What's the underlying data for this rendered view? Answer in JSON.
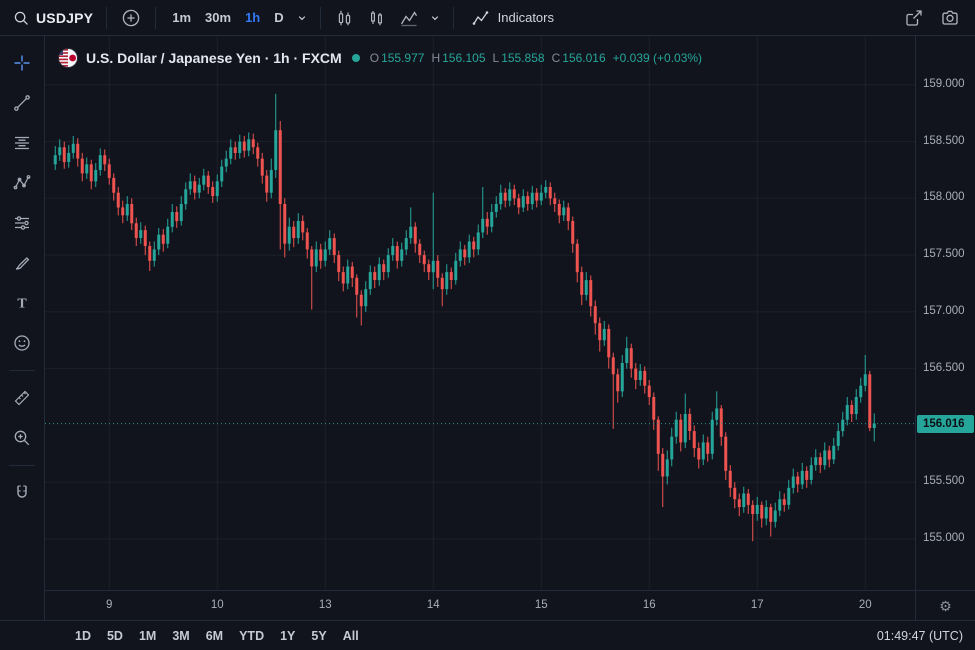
{
  "colors": {
    "up": "#26a69a",
    "down": "#ef5350",
    "accent": "#2962ff",
    "bg": "#11141d",
    "border": "#232a3a",
    "price_label_bg": "#26a69a"
  },
  "top_toolbar": {
    "symbol": "USDJPY",
    "intervals": [
      {
        "label": "1m",
        "active": false
      },
      {
        "label": "30m",
        "active": false
      },
      {
        "label": "1h",
        "active": true
      },
      {
        "label": "D",
        "active": false
      }
    ],
    "indicators_label": "Indicators"
  },
  "left_toolbar": {
    "tools": [
      "crosshair",
      "trend-line",
      "fib-retracement",
      "xabcd-pattern",
      "forecast",
      "brush",
      "text",
      "emoji",
      "ruler",
      "zoom-in",
      "magnet"
    ]
  },
  "chart": {
    "title": "U.S. Dollar / Japanese Yen · 1h · FXCM",
    "ohlc": {
      "o_label": "O",
      "o": "155.977",
      "h_label": "H",
      "h": "156.105",
      "l_label": "L",
      "l": "155.858",
      "c_label": "C",
      "c": "156.016",
      "change": "+0.039 (+0.03%)"
    },
    "price_label": "156.016"
  },
  "chart_data": {
    "type": "candlestick",
    "symbol": "USDJPY",
    "exchange": "FXCM",
    "interval": "1h",
    "last_price": 156.016,
    "current_bar": {
      "open": 155.977,
      "high": 156.105,
      "low": 155.858,
      "close": 156.016,
      "change": "+0.039 (+0.03%)"
    },
    "y_axis": {
      "min": 154.55,
      "max": 159.43,
      "ticks": [
        {
          "label": "159.000",
          "value": 159.0
        },
        {
          "label": "158.500",
          "value": 158.5
        },
        {
          "label": "158.000",
          "value": 158.0
        },
        {
          "label": "157.500",
          "value": 157.5
        },
        {
          "label": "157.000",
          "value": 157.0
        },
        {
          "label": "156.500",
          "value": 156.5
        },
        {
          "label": "155.500",
          "value": 155.5
        },
        {
          "label": "155.000",
          "value": 155.0
        }
      ]
    },
    "x_ticks": [
      {
        "label": "9",
        "i": 12
      },
      {
        "label": "10",
        "i": 36
      },
      {
        "label": "13",
        "i": 60
      },
      {
        "label": "14",
        "i": 84
      },
      {
        "label": "15",
        "i": 108
      },
      {
        "label": "16",
        "i": 132
      },
      {
        "label": "17",
        "i": 156
      },
      {
        "label": "20",
        "i": 180
      }
    ],
    "candles": [
      [
        158.3,
        158.46,
        158.25,
        158.38
      ],
      [
        158.38,
        158.52,
        158.33,
        158.45
      ],
      [
        158.45,
        158.5,
        158.26,
        158.32
      ],
      [
        158.32,
        158.47,
        158.27,
        158.4
      ],
      [
        158.4,
        158.55,
        158.35,
        158.48
      ],
      [
        158.48,
        158.53,
        158.28,
        158.35
      ],
      [
        158.35,
        158.4,
        158.15,
        158.22
      ],
      [
        158.22,
        158.36,
        158.17,
        158.3
      ],
      [
        158.3,
        158.34,
        158.08,
        158.15
      ],
      [
        158.15,
        158.31,
        158.1,
        158.25
      ],
      [
        158.25,
        158.44,
        158.2,
        158.38
      ],
      [
        158.38,
        158.43,
        158.24,
        158.3
      ],
      [
        158.3,
        158.35,
        158.12,
        158.18
      ],
      [
        158.18,
        158.22,
        157.98,
        158.05
      ],
      [
        158.05,
        158.1,
        157.85,
        157.92
      ],
      [
        157.92,
        157.98,
        157.78,
        157.85
      ],
      [
        157.85,
        158.02,
        157.8,
        157.95
      ],
      [
        157.95,
        158.0,
        157.72,
        157.78
      ],
      [
        157.78,
        157.83,
        157.58,
        157.65
      ],
      [
        157.65,
        157.79,
        157.6,
        157.72
      ],
      [
        157.72,
        157.76,
        157.5,
        157.58
      ],
      [
        157.58,
        157.62,
        157.36,
        157.45
      ],
      [
        157.45,
        157.62,
        157.4,
        157.55
      ],
      [
        157.55,
        157.74,
        157.5,
        157.68
      ],
      [
        157.68,
        157.73,
        157.53,
        157.6
      ],
      [
        157.6,
        157.82,
        157.56,
        157.75
      ],
      [
        157.75,
        157.95,
        157.7,
        157.88
      ],
      [
        157.88,
        157.93,
        157.74,
        157.8
      ],
      [
        157.8,
        158.02,
        157.76,
        157.95
      ],
      [
        157.95,
        158.14,
        157.9,
        158.08
      ],
      [
        158.08,
        158.22,
        158.03,
        158.15
      ],
      [
        158.15,
        158.2,
        157.99,
        158.05
      ],
      [
        158.05,
        158.18,
        158.0,
        158.12
      ],
      [
        158.12,
        158.26,
        158.07,
        158.2
      ],
      [
        158.2,
        158.24,
        158.04,
        158.1
      ],
      [
        158.1,
        158.15,
        157.96,
        158.02
      ],
      [
        158.02,
        158.21,
        157.97,
        158.15
      ],
      [
        158.15,
        158.34,
        158.1,
        158.28
      ],
      [
        158.28,
        158.42,
        158.23,
        158.35
      ],
      [
        158.35,
        158.52,
        158.3,
        158.45
      ],
      [
        158.45,
        158.5,
        158.34,
        158.4
      ],
      [
        158.4,
        158.56,
        158.35,
        158.5
      ],
      [
        158.5,
        158.55,
        158.36,
        158.42
      ],
      [
        158.42,
        158.58,
        158.37,
        158.52
      ],
      [
        158.52,
        158.57,
        158.39,
        158.45
      ],
      [
        158.45,
        158.49,
        158.28,
        158.35
      ],
      [
        158.35,
        158.4,
        158.13,
        158.2
      ],
      [
        158.2,
        158.25,
        157.97,
        158.05
      ],
      [
        158.05,
        158.35,
        158.0,
        158.25
      ],
      [
        158.25,
        158.92,
        158.18,
        158.6
      ],
      [
        158.6,
        158.68,
        157.55,
        157.95
      ],
      [
        157.95,
        158.0,
        157.48,
        157.6
      ],
      [
        157.6,
        157.83,
        157.54,
        157.75
      ],
      [
        157.75,
        157.8,
        157.57,
        157.65
      ],
      [
        157.65,
        157.87,
        157.6,
        157.8
      ],
      [
        157.8,
        157.85,
        157.63,
        157.7
      ],
      [
        157.7,
        157.74,
        157.47,
        157.55
      ],
      [
        157.55,
        157.58,
        157.02,
        157.4
      ],
      [
        157.4,
        157.62,
        157.35,
        157.55
      ],
      [
        157.55,
        157.6,
        157.38,
        157.45
      ],
      [
        157.45,
        157.62,
        157.4,
        157.55
      ],
      [
        157.55,
        157.72,
        157.5,
        157.65
      ],
      [
        157.65,
        157.69,
        157.43,
        157.5
      ],
      [
        157.5,
        157.54,
        157.27,
        157.35
      ],
      [
        157.35,
        157.4,
        157.18,
        157.25
      ],
      [
        157.25,
        157.46,
        157.2,
        157.4
      ],
      [
        157.4,
        157.44,
        157.22,
        157.3
      ],
      [
        157.3,
        157.33,
        156.95,
        157.15
      ],
      [
        157.15,
        157.19,
        156.88,
        157.05
      ],
      [
        157.05,
        157.27,
        157.0,
        157.2
      ],
      [
        157.2,
        157.41,
        157.15,
        157.35
      ],
      [
        157.35,
        157.4,
        157.21,
        157.28
      ],
      [
        157.28,
        157.48,
        157.23,
        157.42
      ],
      [
        157.42,
        157.46,
        157.28,
        157.35
      ],
      [
        157.35,
        157.56,
        157.3,
        157.5
      ],
      [
        157.5,
        157.65,
        157.45,
        157.58
      ],
      [
        157.58,
        157.62,
        157.38,
        157.45
      ],
      [
        157.45,
        157.61,
        157.4,
        157.55
      ],
      [
        157.55,
        157.72,
        157.5,
        157.65
      ],
      [
        157.65,
        157.92,
        157.6,
        157.75
      ],
      [
        157.75,
        157.79,
        157.52,
        157.6
      ],
      [
        157.6,
        157.64,
        157.43,
        157.5
      ],
      [
        157.5,
        157.54,
        157.35,
        157.42
      ],
      [
        157.42,
        157.46,
        157.28,
        157.35
      ],
      [
        157.35,
        158.05,
        157.2,
        157.45
      ],
      [
        157.45,
        157.5,
        157.22,
        157.3
      ],
      [
        157.3,
        157.34,
        157.05,
        157.2
      ],
      [
        157.2,
        157.42,
        157.15,
        157.35
      ],
      [
        157.35,
        157.39,
        157.2,
        157.28
      ],
      [
        157.28,
        157.52,
        157.24,
        157.45
      ],
      [
        157.45,
        157.62,
        157.4,
        157.55
      ],
      [
        157.55,
        157.59,
        157.41,
        157.48
      ],
      [
        157.48,
        157.68,
        157.43,
        157.62
      ],
      [
        157.62,
        157.66,
        157.48,
        157.55
      ],
      [
        157.55,
        157.77,
        157.5,
        157.7
      ],
      [
        157.7,
        158.1,
        157.65,
        157.82
      ],
      [
        157.82,
        157.88,
        157.68,
        157.75
      ],
      [
        157.75,
        157.95,
        157.7,
        157.88
      ],
      [
        157.88,
        158.02,
        157.83,
        157.95
      ],
      [
        157.95,
        158.12,
        157.9,
        158.05
      ],
      [
        158.05,
        158.09,
        157.92,
        157.98
      ],
      [
        157.98,
        158.14,
        157.93,
        158.08
      ],
      [
        158.08,
        158.12,
        157.94,
        158.0
      ],
      [
        158.0,
        158.04,
        157.86,
        157.92
      ],
      [
        157.92,
        158.08,
        157.88,
        158.02
      ],
      [
        158.02,
        158.06,
        157.89,
        157.95
      ],
      [
        157.95,
        158.11,
        157.9,
        158.05
      ],
      [
        158.05,
        158.09,
        157.92,
        157.98
      ],
      [
        157.98,
        158.12,
        157.94,
        158.05
      ],
      [
        158.05,
        158.16,
        158.0,
        158.1
      ],
      [
        158.1,
        158.14,
        157.94,
        158.0
      ],
      [
        158.0,
        158.05,
        157.88,
        157.95
      ],
      [
        157.95,
        157.99,
        157.78,
        157.85
      ],
      [
        157.85,
        157.98,
        157.8,
        157.92
      ],
      [
        157.92,
        157.96,
        157.72,
        157.8
      ],
      [
        157.8,
        157.84,
        157.52,
        157.6
      ],
      [
        157.6,
        157.64,
        157.26,
        157.35
      ],
      [
        157.35,
        157.4,
        157.06,
        157.15
      ],
      [
        157.15,
        157.35,
        157.1,
        157.28
      ],
      [
        157.28,
        157.32,
        156.96,
        157.05
      ],
      [
        157.05,
        157.1,
        156.8,
        156.9
      ],
      [
        156.9,
        156.95,
        156.65,
        156.75
      ],
      [
        156.75,
        156.92,
        156.7,
        156.85
      ],
      [
        156.85,
        156.89,
        156.5,
        156.6
      ],
      [
        156.6,
        156.64,
        155.97,
        156.45
      ],
      [
        156.45,
        156.5,
        156.2,
        156.3
      ],
      [
        156.3,
        156.62,
        156.25,
        156.55
      ],
      [
        156.55,
        156.78,
        156.5,
        156.68
      ],
      [
        156.68,
        156.72,
        156.42,
        156.5
      ],
      [
        156.5,
        156.55,
        156.32,
        156.4
      ],
      [
        156.4,
        156.54,
        156.35,
        156.48
      ],
      [
        156.48,
        156.52,
        156.28,
        156.35
      ],
      [
        156.35,
        156.4,
        156.18,
        156.25
      ],
      [
        156.25,
        156.29,
        155.96,
        156.05
      ],
      [
        156.05,
        156.08,
        155.6,
        155.75
      ],
      [
        155.75,
        155.8,
        155.28,
        155.55
      ],
      [
        155.55,
        155.78,
        155.48,
        155.7
      ],
      [
        155.7,
        155.98,
        155.64,
        155.9
      ],
      [
        155.9,
        156.12,
        155.84,
        156.05
      ],
      [
        156.05,
        156.1,
        155.77,
        155.85
      ],
      [
        155.85,
        156.28,
        155.8,
        156.1
      ],
      [
        156.1,
        156.15,
        155.87,
        155.95
      ],
      [
        155.95,
        156.0,
        155.72,
        155.8
      ],
      [
        155.8,
        155.85,
        155.62,
        155.7
      ],
      [
        155.7,
        155.92,
        155.65,
        155.85
      ],
      [
        155.85,
        155.9,
        155.68,
        155.75
      ],
      [
        155.75,
        156.12,
        155.7,
        156.05
      ],
      [
        156.05,
        156.3,
        156.0,
        156.15
      ],
      [
        156.15,
        156.18,
        155.82,
        155.9
      ],
      [
        155.9,
        155.94,
        155.52,
        155.6
      ],
      [
        155.6,
        155.65,
        155.37,
        155.45
      ],
      [
        155.45,
        155.5,
        155.27,
        155.35
      ],
      [
        155.35,
        155.4,
        155.2,
        155.28
      ],
      [
        155.28,
        155.46,
        155.23,
        155.4
      ],
      [
        155.4,
        155.44,
        155.22,
        155.3
      ],
      [
        155.3,
        155.34,
        154.98,
        155.22
      ],
      [
        155.22,
        155.37,
        155.16,
        155.3
      ],
      [
        155.3,
        155.33,
        155.1,
        155.18
      ],
      [
        155.18,
        155.34,
        155.12,
        155.28
      ],
      [
        155.28,
        155.31,
        155.02,
        155.15
      ],
      [
        155.15,
        155.32,
        155.1,
        155.25
      ],
      [
        155.25,
        155.42,
        155.2,
        155.35
      ],
      [
        155.35,
        155.4,
        155.24,
        155.3
      ],
      [
        155.3,
        155.52,
        155.26,
        155.45
      ],
      [
        155.45,
        155.62,
        155.4,
        155.55
      ],
      [
        155.55,
        155.59,
        155.41,
        155.48
      ],
      [
        155.48,
        155.67,
        155.44,
        155.6
      ],
      [
        155.6,
        155.64,
        155.45,
        155.52
      ],
      [
        155.52,
        155.72,
        155.48,
        155.65
      ],
      [
        155.65,
        155.79,
        155.6,
        155.72
      ],
      [
        155.72,
        155.76,
        155.58,
        155.65
      ],
      [
        155.65,
        155.85,
        155.61,
        155.78
      ],
      [
        155.78,
        155.82,
        155.63,
        155.7
      ],
      [
        155.7,
        155.89,
        155.66,
        155.82
      ],
      [
        155.82,
        156.02,
        155.78,
        155.95
      ],
      [
        155.95,
        156.12,
        155.9,
        156.05
      ],
      [
        156.05,
        156.25,
        156.0,
        156.18
      ],
      [
        156.18,
        156.22,
        156.03,
        156.1
      ],
      [
        156.1,
        156.32,
        156.05,
        156.25
      ],
      [
        156.25,
        156.42,
        156.2,
        156.35
      ],
      [
        156.35,
        156.62,
        156.3,
        156.45
      ],
      [
        156.45,
        156.48,
        155.95,
        155.977
      ],
      [
        155.977,
        156.105,
        155.858,
        156.016
      ]
    ]
  },
  "time_axis_row": {
    "gear_icon": "⚙"
  },
  "bottom_bar": {
    "ranges": [
      "1D",
      "5D",
      "1M",
      "3M",
      "6M",
      "YTD",
      "1Y",
      "5Y",
      "All"
    ],
    "clock": "01:49:47 (UTC)"
  }
}
